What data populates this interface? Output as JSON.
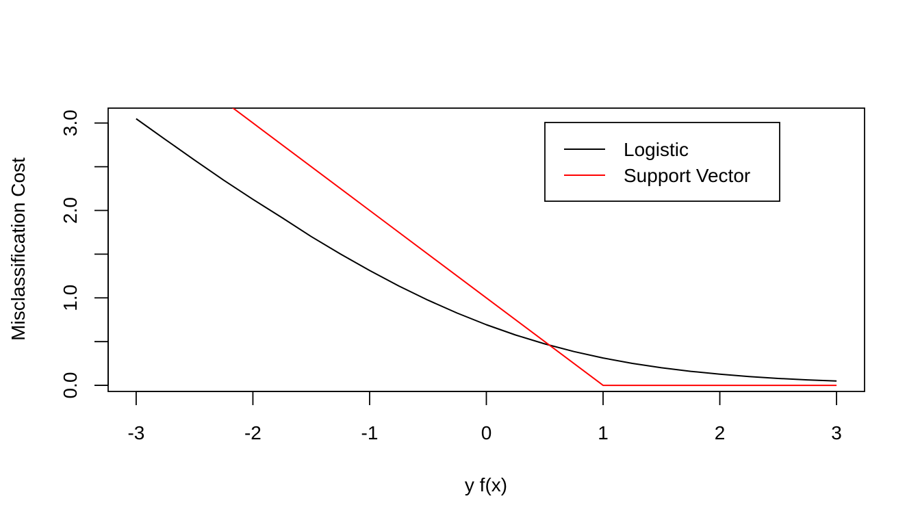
{
  "chart_data": {
    "type": "line",
    "title": "",
    "xlabel": "y f(x)",
    "ylabel": "Misclassification Cost",
    "xlim": [
      -3.24,
      3.24
    ],
    "ylim": [
      -0.07,
      3.17
    ],
    "x_ticks": [
      -3,
      -2,
      -1,
      0,
      1,
      2,
      3
    ],
    "x_tick_labels": [
      "-3",
      "-2",
      "-1",
      "0",
      "1",
      "2",
      "3"
    ],
    "y_ticks": [
      0,
      0.5,
      1,
      1.5,
      2,
      2.5,
      3
    ],
    "y_tick_labels": [
      "0.0",
      "",
      "1.0",
      "",
      "2.0",
      "",
      "3.0"
    ],
    "grid": false,
    "legend_position": "top-right",
    "series": [
      {
        "name": "Logistic",
        "color": "#000000",
        "x": [
          -3.0,
          -2.75,
          -2.5,
          -2.25,
          -2.0,
          -1.75,
          -1.5,
          -1.25,
          -1.0,
          -0.75,
          -0.5,
          -0.25,
          0.0,
          0.25,
          0.5,
          0.75,
          1.0,
          1.25,
          1.5,
          1.75,
          2.0,
          2.25,
          2.5,
          2.75,
          3.0
        ],
        "y": [
          3.049,
          2.811,
          2.576,
          2.346,
          2.127,
          1.917,
          1.701,
          1.502,
          1.313,
          1.136,
          0.974,
          0.826,
          0.693,
          0.576,
          0.474,
          0.386,
          0.313,
          0.251,
          0.201,
          0.16,
          0.127,
          0.1,
          0.079,
          0.062,
          0.049
        ]
      },
      {
        "name": "Support Vector",
        "color": "#ff0000",
        "x": [
          -3.0,
          -2.0,
          -1.0,
          0.0,
          0.5,
          0.97,
          1.0,
          1.03,
          2.0,
          3.0
        ],
        "y": [
          4.0,
          3.0,
          2.0,
          1.0,
          0.5,
          0.03,
          0.0,
          0.0,
          0.0,
          0.0
        ]
      }
    ]
  }
}
